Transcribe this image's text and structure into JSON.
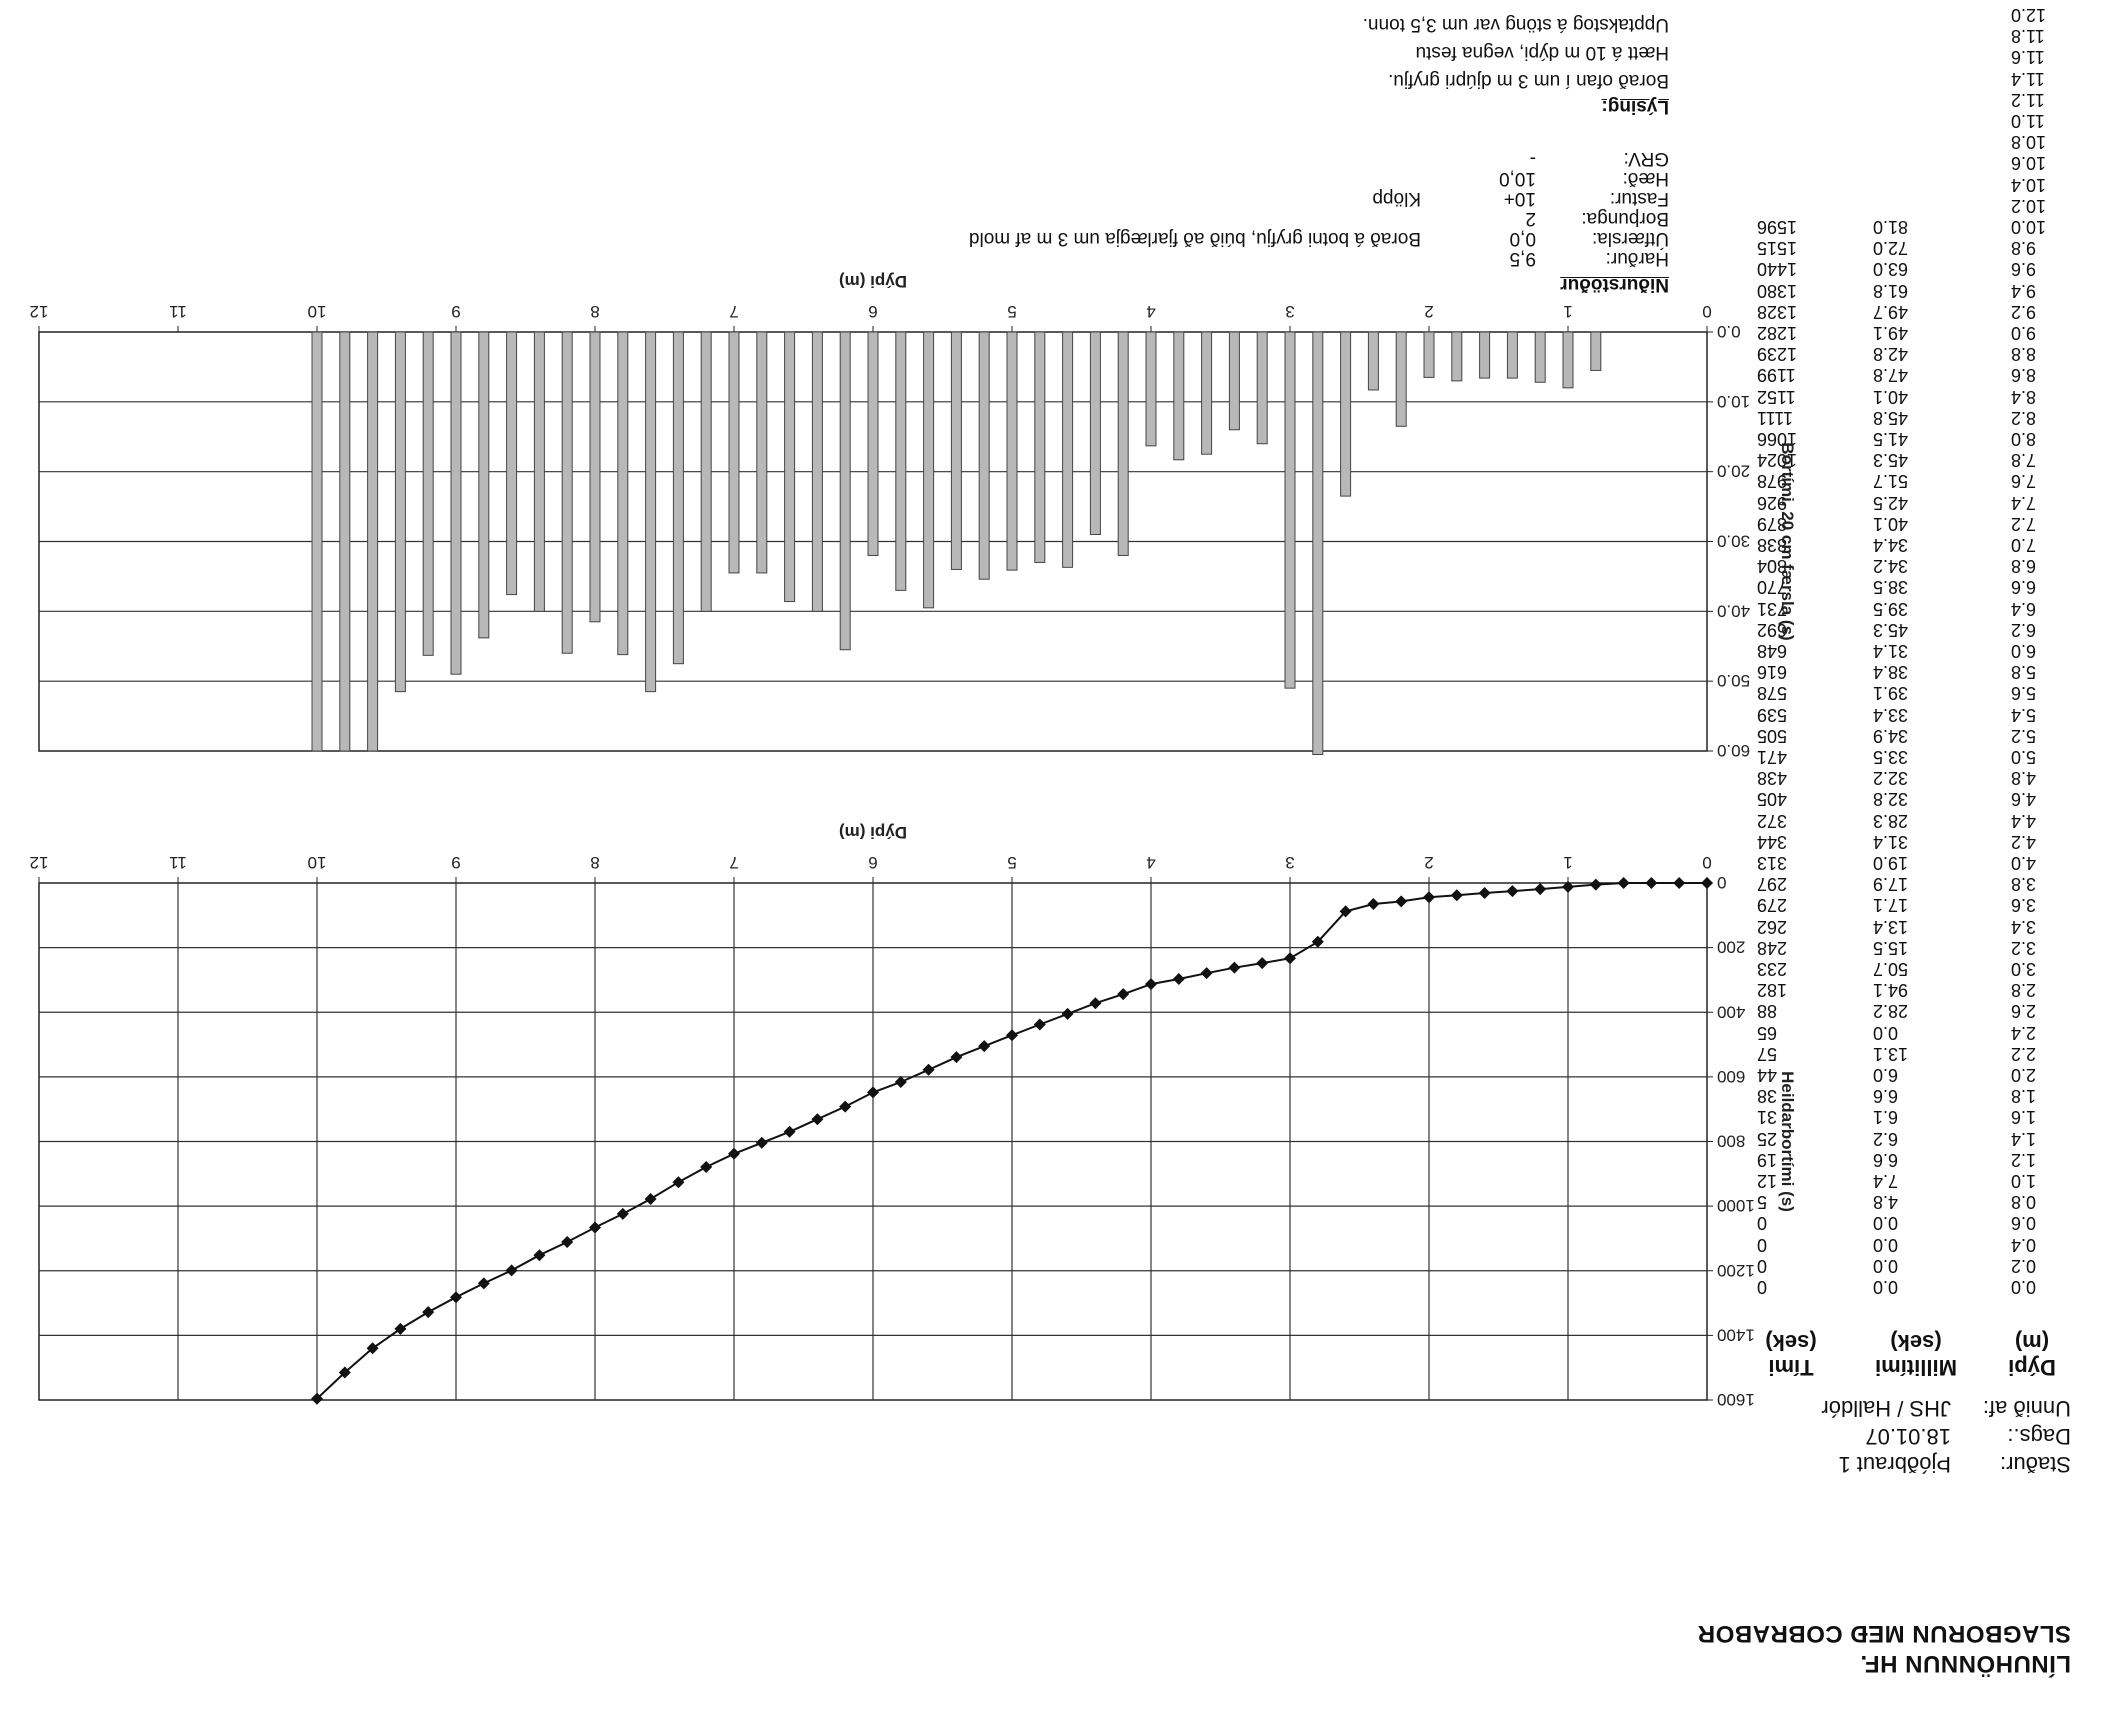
{
  "header": {
    "company": "LÍNUHÖNNUN HF.",
    "method": "SLAGBORUN MEÐ COBRABOR"
  },
  "meta": {
    "stadur_label": "Staður:",
    "stadur_value": "Þjóðbraut 1",
    "dags_label": "Dags.:",
    "dags_value": "18.01.07",
    "unnid_label": "Unnið af:",
    "unnid_value": "JHS / Halldór"
  },
  "table": {
    "headers": [
      {
        "name": "Dýpi",
        "unit": "(m)"
      },
      {
        "name": "Millitími",
        "unit": "(sek)"
      },
      {
        "name": "Tími",
        "unit": "(sek)"
      }
    ],
    "depth": [
      "0.0",
      "0.2",
      "0.4",
      "0.6",
      "0.8",
      "1.0",
      "1.2",
      "1.4",
      "1.6",
      "1.8",
      "2.0",
      "2.2",
      "2.4",
      "2.6",
      "2.8",
      "3.0",
      "3.2",
      "3.4",
      "3.6",
      "3.8",
      "4.0",
      "4.2",
      "4.4",
      "4.6",
      "4.8",
      "5.0",
      "5.2",
      "5.4",
      "5.6",
      "5.8",
      "6.0",
      "6.2",
      "6.4",
      "6.6",
      "6.8",
      "7.0",
      "7.2",
      "7.4",
      "7.6",
      "7.8",
      "8.0",
      "8.2",
      "8.4",
      "8.6",
      "8.8",
      "9.0",
      "9.2",
      "9.4",
      "9.6",
      "9.8",
      "10.0",
      "10.2",
      "10.4",
      "10.6",
      "10.8",
      "11.0",
      "11.2",
      "11.4",
      "11.6",
      "11.8",
      "12.0"
    ],
    "millitimi": [
      "0.0",
      "0.0",
      "0.0",
      "0.0",
      "4.8",
      "7.4",
      "6.6",
      "6.2",
      "6.1",
      "6.6",
      "6.0",
      "13.1",
      "0.0",
      "28.2",
      "94.1",
      "50.7",
      "15.5",
      "13.4",
      "17.1",
      "17.9",
      "19.0",
      "31.4",
      "28.3",
      "32.8",
      "32.2",
      "33.5",
      "34.9",
      "33.4",
      "39.1",
      "38.4",
      "31.4",
      "45.3",
      "39.5",
      "38.5",
      "34.2",
      "34.4",
      "40.1",
      "42.5",
      "51.7",
      "45.3",
      "41.5",
      "45.8",
      "40.1",
      "47.8",
      "42.8",
      "49.1",
      "49.7",
      "61.8",
      "63.0",
      "72.0",
      "81.0"
    ],
    "timi": [
      "0",
      "0",
      "0",
      "0",
      "5",
      "12",
      "19",
      "25",
      "31",
      "38",
      "44",
      "57",
      "65",
      "88",
      "182",
      "233",
      "248",
      "262",
      "279",
      "297",
      "313",
      "344",
      "372",
      "405",
      "438",
      "471",
      "505",
      "539",
      "578",
      "616",
      "648",
      "692",
      "731",
      "770",
      "804",
      "838",
      "879",
      "926",
      "978",
      "1024",
      "1066",
      "1111",
      "1152",
      "1199",
      "1239",
      "1282",
      "1328",
      "1380",
      "1440",
      "1515",
      "1596"
    ]
  },
  "description": {
    "nidurstodur_label": "Niðurstöður",
    "rows": [
      {
        "label": "Harður:",
        "value": "9,5",
        "note": ""
      },
      {
        "label": "Útfærsla:",
        "value": "0,0",
        "note": "Borað á botni gryfju, búið að fjarlægja um 3 m af mold"
      },
      {
        "label": "Borþunga:",
        "value": "2",
        "note": ""
      },
      {
        "label": "Fastur:",
        "value": "10+",
        "note": "Klöpp"
      },
      {
        "label": "Hæð:",
        "value": "10,0",
        "note": ""
      },
      {
        "label": "GRV:",
        "value": "-",
        "note": ""
      }
    ],
    "lysing_label": "Lýsing:",
    "lysing_lines": [
      "Borað ofan í um 3 m djúpri gryfju.",
      "Hætt á 10 m dýpi, vegna festu",
      "Upptakstog á stöng var um 3,5 tonn."
    ]
  },
  "chart_data": [
    {
      "type": "bar",
      "xlabel": "Dýpi (m)",
      "ylabel": "Bortími, 20 cm færsla (s)",
      "xlim": [
        0,
        12
      ],
      "ylim": [
        0,
        60
      ],
      "x_ticks": [
        "0",
        "1",
        "2",
        "3",
        "4",
        "5",
        "6",
        "7",
        "8",
        "9",
        "10",
        "11",
        "12"
      ],
      "y_ticks": [
        "0.0",
        "10.0",
        "20.0",
        "30.0",
        "40.0",
        "50.0",
        "60.0"
      ],
      "grid": true,
      "x": [
        0.8,
        1.0,
        1.2,
        1.4,
        1.6,
        1.8,
        2.0,
        2.2,
        2.4,
        2.6,
        2.8,
        3.0,
        3.2,
        3.4,
        3.6,
        3.8,
        4.0,
        4.2,
        4.4,
        4.6,
        4.8,
        5.0,
        5.2,
        5.4,
        5.6,
        5.8,
        6.0,
        6.2,
        6.4,
        6.6,
        6.8,
        7.0,
        7.2,
        7.4,
        7.6,
        7.8,
        8.0,
        8.2,
        8.4,
        8.6,
        8.8,
        9.0,
        9.2,
        9.4,
        9.6,
        9.8,
        10.0
      ],
      "values": [
        5.5,
        8,
        7.2,
        6.6,
        6.6,
        7,
        6.5,
        13.5,
        8.3,
        23.5,
        60.5,
        51,
        16,
        14,
        17.5,
        18.3,
        16.3,
        32,
        29,
        33.7,
        33,
        34.1,
        35.4,
        34,
        39.5,
        37,
        32,
        45.5,
        40,
        38.6,
        34.5,
        34.5,
        40,
        47.5,
        51.5,
        46.2,
        41.5,
        46,
        40,
        37.6,
        43.8,
        49,
        46.3,
        51.5,
        60,
        60,
        60
      ]
    },
    {
      "type": "line",
      "xlabel": "Dýpi (m)",
      "ylabel": "Heildarbortími (s)",
      "xlim": [
        0,
        12
      ],
      "ylim": [
        0,
        1600
      ],
      "x_ticks": [
        "0",
        "1",
        "2",
        "3",
        "4",
        "5",
        "6",
        "7",
        "8",
        "9",
        "10",
        "11",
        "12"
      ],
      "y_ticks": [
        "0",
        "200",
        "400",
        "600",
        "800",
        "1000",
        "1200",
        "1400",
        "1600"
      ],
      "grid": true,
      "x": [
        0.0,
        0.2,
        0.4,
        0.6,
        0.8,
        1.0,
        1.2,
        1.4,
        1.6,
        1.8,
        2.0,
        2.2,
        2.4,
        2.6,
        2.8,
        3.0,
        3.2,
        3.4,
        3.6,
        3.8,
        4.0,
        4.2,
        4.4,
        4.6,
        4.8,
        5.0,
        5.2,
        5.4,
        5.6,
        5.8,
        6.0,
        6.2,
        6.4,
        6.6,
        6.8,
        7.0,
        7.2,
        7.4,
        7.6,
        7.8,
        8.0,
        8.2,
        8.4,
        8.6,
        8.8,
        9.0,
        9.2,
        9.4,
        9.6,
        9.8,
        10.0
      ],
      "values": [
        0,
        0,
        0,
        0,
        5,
        12,
        19,
        25,
        31,
        38,
        44,
        57,
        65,
        88,
        182,
        233,
        248,
        262,
        279,
        297,
        313,
        344,
        372,
        405,
        438,
        471,
        505,
        539,
        578,
        616,
        648,
        692,
        731,
        770,
        804,
        838,
        879,
        926,
        978,
        1024,
        1066,
        1111,
        1152,
        1199,
        1239,
        1282,
        1328,
        1380,
        1440,
        1515,
        1596
      ]
    }
  ]
}
